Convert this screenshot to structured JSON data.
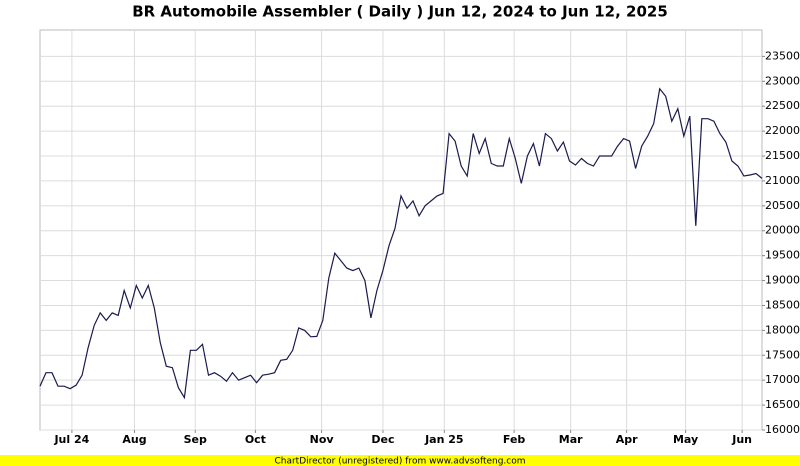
{
  "chart_data": {
    "type": "line",
    "title": "BR Automobile Assembler ( Daily ) Jun 12, 2024 to Jun 12, 2025",
    "footer": "ChartDirector (unregistered) from www.advsofteng.com",
    "series": [
      {
        "name": "BR Automobile Assembler",
        "color": "#1a1a4e",
        "values": [
          16880,
          17150,
          17150,
          16880,
          16880,
          16830,
          16900,
          17100,
          17650,
          18100,
          18350,
          18200,
          18350,
          18300,
          18800,
          18450,
          18900,
          18650,
          18900,
          18450,
          17750,
          17280,
          17250,
          16850,
          16650,
          17600,
          17600,
          17720,
          17100,
          17150,
          17080,
          16980,
          17150,
          17000,
          17050,
          17100,
          16950,
          17100,
          17120,
          17150,
          17400,
          17420,
          17600,
          18050,
          18000,
          17870,
          17880,
          18200,
          19050,
          19550,
          19400,
          19250,
          19200,
          19250,
          19000,
          18250,
          18800,
          19200,
          19700,
          20050,
          20700,
          20450,
          20600,
          20300,
          20500,
          20600,
          20700,
          20750,
          21950,
          21800,
          21300,
          21100,
          21950,
          21550,
          21850,
          21350,
          21300,
          21300,
          21850,
          21450,
          20950,
          21500,
          21750,
          21300,
          21950,
          21850,
          21600,
          21780,
          21400,
          21320,
          21450,
          21350,
          21300,
          21500,
          21500,
          21500,
          21700,
          21850,
          21800,
          21250,
          21700,
          21900,
          22150,
          22850,
          22700,
          22200,
          22450,
          21900,
          22300,
          20100,
          22250,
          22250,
          22200,
          21950,
          21780,
          21400,
          21300,
          21100,
          21120,
          21150,
          21050
        ]
      }
    ],
    "xlim": [
      0,
      120
    ],
    "xticks": [
      {
        "value": 5.3,
        "label": "Jul 24"
      },
      {
        "value": 15.7,
        "label": "Aug"
      },
      {
        "value": 25.8,
        "label": "Sep"
      },
      {
        "value": 35.8,
        "label": "Oct"
      },
      {
        "value": 46.8,
        "label": "Nov"
      },
      {
        "value": 57,
        "label": "Dec"
      },
      {
        "value": 67.2,
        "label": "Jan 25"
      },
      {
        "value": 78.8,
        "label": "Feb"
      },
      {
        "value": 88.2,
        "label": "Mar"
      },
      {
        "value": 97.5,
        "label": "Apr"
      },
      {
        "value": 107.3,
        "label": "May"
      },
      {
        "value": 116.7,
        "label": "Jun"
      }
    ],
    "ylim": [
      16000,
      24030
    ],
    "yticks": [
      16000,
      16500,
      17000,
      17500,
      18000,
      18500,
      19000,
      19500,
      20000,
      20500,
      21000,
      21500,
      22000,
      22500,
      23000,
      23500
    ],
    "grid": true
  }
}
